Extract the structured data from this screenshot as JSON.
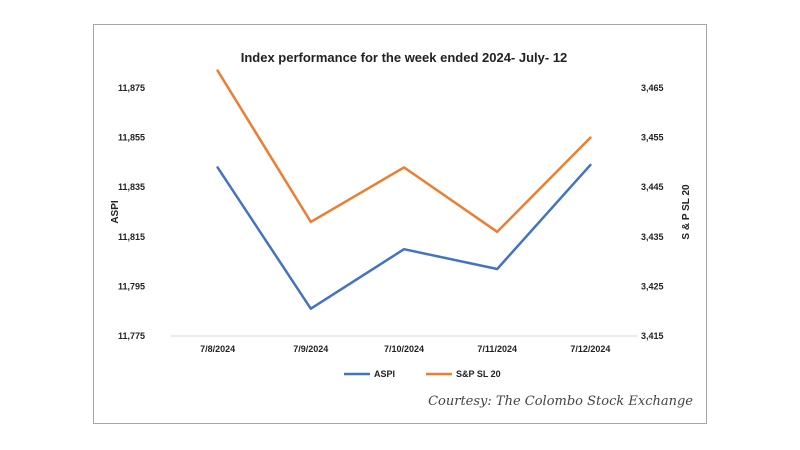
{
  "chart_data": {
    "type": "line",
    "title": "Index performance for the week ended 2024- July- 12",
    "categories": [
      "7/8/2024",
      "7/9/2024",
      "7/10/2024",
      "7/11/2024",
      "7/12/2024"
    ],
    "series": [
      {
        "name": "ASPI",
        "axis": "left",
        "color": "#4472c4",
        "values": [
          11843,
          11786,
          11810,
          11802,
          11844
        ]
      },
      {
        "name": "S&P SL 20",
        "axis": "right",
        "color": "#ed7d31",
        "values": [
          3468.5,
          3438,
          3449,
          3436,
          3455
        ]
      }
    ],
    "ylabel": "ASPI",
    "y2label": "S & P SL 20",
    "ylim": [
      11775,
      11875
    ],
    "y2lim": [
      3415,
      3465
    ],
    "yticks": [
      "11,775",
      "11,795",
      "11,815",
      "11,835",
      "11,855",
      "11,875"
    ],
    "y2ticks": [
      "3,415",
      "3,425",
      "3,435",
      "3,445",
      "3,455",
      "3,465"
    ],
    "grid": false,
    "legend": "bottom"
  },
  "credit": "Courtesy: The Colombo Stock Exchange"
}
